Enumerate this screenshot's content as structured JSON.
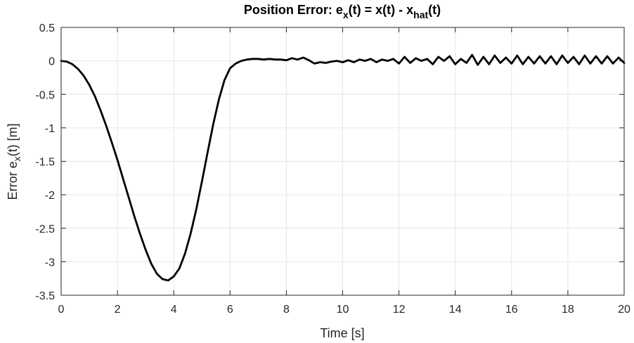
{
  "chart_data": {
    "type": "line",
    "title": {
      "prefix": "Position Error: e",
      "sub1": "x",
      "mid": "(t) = x(t) - x",
      "sub2": "hat",
      "suffix": "(t)"
    },
    "xlabel": "Time [s]",
    "ylabel": {
      "prefix": "Error e",
      "sub": "x",
      "suffix": "(t) [m]"
    },
    "xlim": [
      0,
      20
    ],
    "ylim": [
      -3.5,
      0.5
    ],
    "xticks": [
      0,
      2,
      4,
      6,
      8,
      10,
      12,
      14,
      16,
      18,
      20
    ],
    "yticks": [
      0.5,
      0,
      -0.5,
      -1,
      -1.5,
      -2,
      -2.5,
      -3,
      -3.5
    ],
    "grid": true,
    "colors": {
      "line": "#000000",
      "grid": "#e6e6e6",
      "axes": "#262626"
    },
    "series": [
      {
        "x": [
          0,
          0.2,
          0.4,
          0.6,
          0.8,
          1.0,
          1.2,
          1.4,
          1.6,
          1.8,
          2.0,
          2.2,
          2.4,
          2.6,
          2.8,
          3.0,
          3.2,
          3.4,
          3.6,
          3.8,
          4.0,
          4.2,
          4.4,
          4.6,
          4.8,
          5.0,
          5.2,
          5.4,
          5.6,
          5.8,
          6.0,
          6.2,
          6.4,
          6.6,
          6.8,
          7.0,
          7.2,
          7.4,
          7.6,
          7.8,
          8.0,
          8.2,
          8.4,
          8.6,
          8.8,
          9.0,
          9.2,
          9.4,
          9.6,
          9.8,
          10.0,
          10.2,
          10.4,
          10.6,
          10.8,
          11.0,
          11.2,
          11.4,
          11.6,
          11.8,
          12.0,
          12.2,
          12.4,
          12.6,
          12.8,
          13.0,
          13.2,
          13.4,
          13.6,
          13.8,
          14.0,
          14.2,
          14.4,
          14.6,
          14.8,
          15.0,
          15.2,
          15.4,
          15.6,
          15.8,
          16.0,
          16.2,
          16.4,
          16.6,
          16.8,
          17.0,
          17.2,
          17.4,
          17.6,
          17.8,
          18.0,
          18.2,
          18.4,
          18.6,
          18.8,
          19.0,
          19.2,
          19.4,
          19.6,
          19.8,
          20.0
        ],
        "values": [
          0,
          -0.01,
          -0.05,
          -0.12,
          -0.22,
          -0.36,
          -0.53,
          -0.74,
          -0.97,
          -1.22,
          -1.48,
          -1.76,
          -2.04,
          -2.32,
          -2.58,
          -2.82,
          -3.03,
          -3.18,
          -3.26,
          -3.28,
          -3.22,
          -3.1,
          -2.88,
          -2.58,
          -2.22,
          -1.8,
          -1.37,
          -0.95,
          -0.58,
          -0.29,
          -0.11,
          -0.04,
          0.0,
          0.02,
          0.03,
          0.03,
          0.02,
          0.03,
          0.02,
          0.02,
          0.01,
          0.04,
          0.02,
          0.05,
          0.01,
          -0.04,
          -0.02,
          -0.03,
          -0.01,
          0.0,
          -0.02,
          0.01,
          -0.02,
          0.02,
          0.0,
          0.03,
          -0.02,
          0.02,
          0.0,
          0.03,
          -0.04,
          0.06,
          -0.03,
          0.04,
          0.0,
          0.03,
          -0.05,
          0.06,
          0.0,
          0.07,
          -0.05,
          0.03,
          -0.03,
          0.09,
          -0.06,
          0.06,
          -0.05,
          0.08,
          -0.03,
          0.05,
          -0.04,
          0.08,
          -0.05,
          0.06,
          -0.04,
          0.07,
          -0.04,
          0.07,
          -0.05,
          0.08,
          -0.03,
          0.06,
          -0.05,
          0.08,
          -0.04,
          0.07,
          -0.04,
          0.07,
          -0.04,
          0.05,
          -0.03
        ]
      }
    ]
  }
}
